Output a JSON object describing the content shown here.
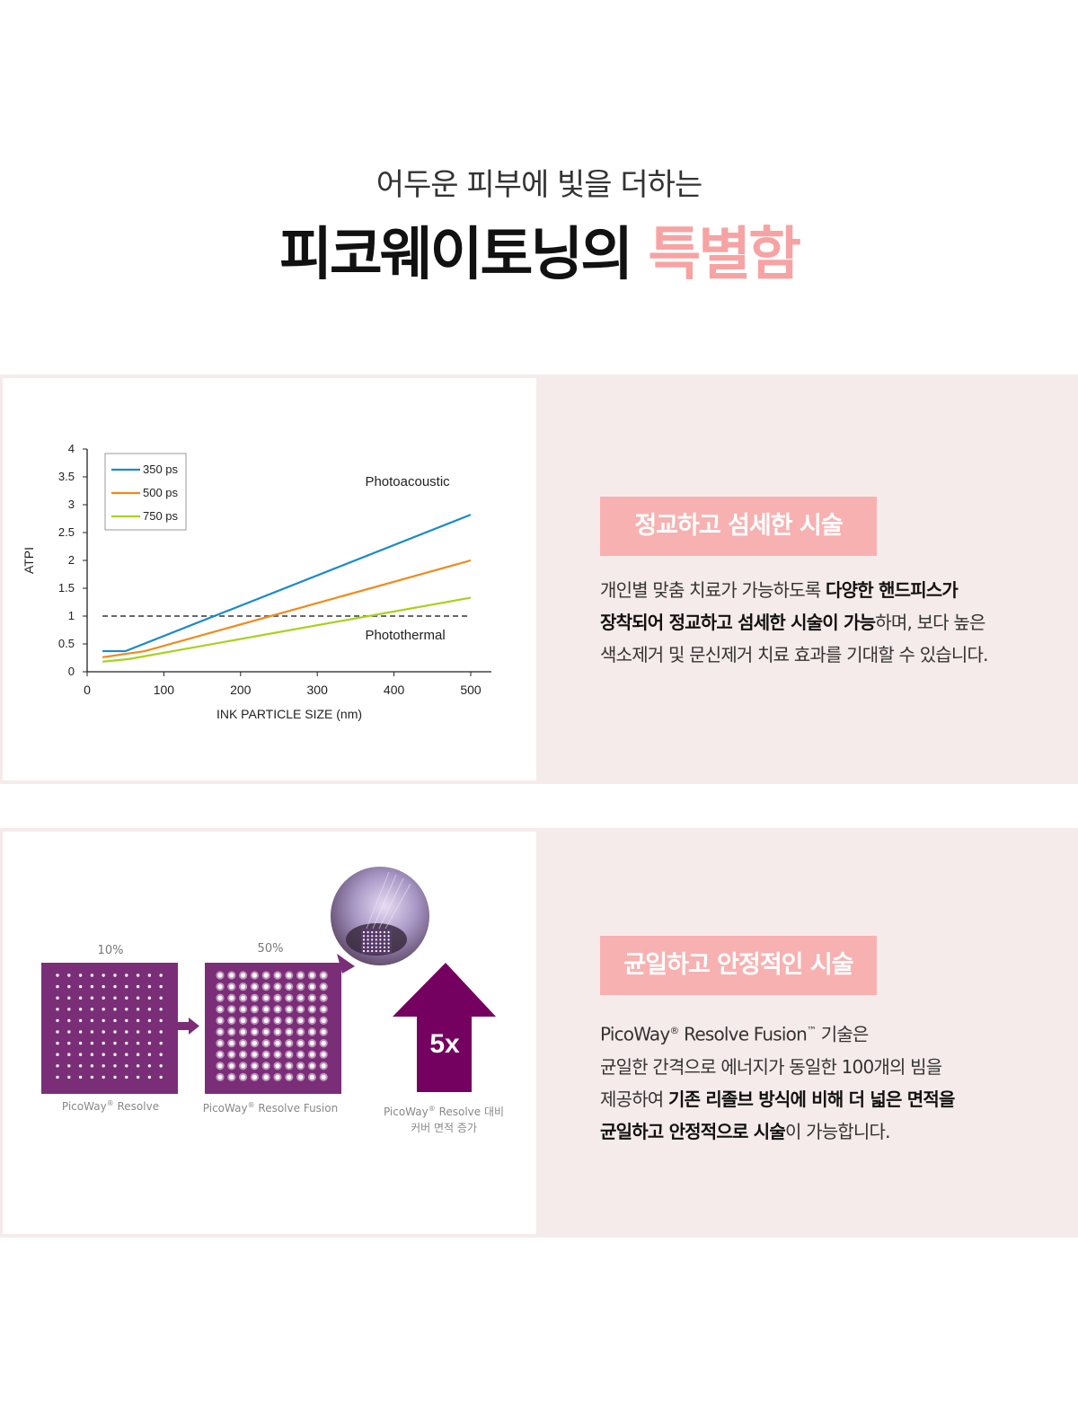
{
  "header": {
    "subtitle": "어두운 피부에 빛을 더하는",
    "title_main": "피코웨이토닝의",
    "title_accent": "특별함"
  },
  "section1": {
    "badge": "정교하고 섬세한 시술",
    "desc_line1_plain": "개인별 맞춤 치료가 가능하도록 ",
    "desc_line1_bold": "다양한 핸드피스가",
    "desc_line2_bold": "장착되어 정교하고 섬세한 시술이 가능",
    "desc_line2_plain": "하며, 보다 높은",
    "desc_line3_plain": "색소제거 및 문신제거 치료 효과를 기대할 수 있습니다."
  },
  "section2": {
    "badge": "균일하고 안정적인 시술",
    "desc_line1_a": "PicoWay",
    "desc_line1_reg": "®",
    "desc_line1_b": " Resolve Fusion",
    "desc_line1_tm": "™",
    "desc_line1_c": " 기술은",
    "desc_line2": "균일한 간격으로 에너지가 동일한 100개의 빔을",
    "desc_line3_plain": "제공하여 ",
    "desc_line3_bold": "기존 리졸브 방식에 비해 더 넓은 면적을",
    "desc_line4_bold": "균일하고 안정적으로 시술",
    "desc_line4_plain": "이 가능합니다.",
    "figure": {
      "pct_left": "10%",
      "pct_right": "50%",
      "cap_left_a": "PicoWay",
      "cap_left_reg": "®",
      "cap_left_b": " Resolve",
      "cap_mid_a": "PicoWay",
      "cap_mid_reg": "®",
      "cap_mid_b": " Resolve Fusion",
      "cap_right_a": "PicoWay",
      "cap_right_reg": "®",
      "cap_right_b": " Resolve 대비",
      "cap_right_line2": "커버 면적 증가",
      "arrow_label": "5x",
      "purple": "#7b2e78",
      "arrow_color": "#74005f"
    }
  },
  "chart_data": {
    "type": "line",
    "title": "",
    "xlabel": "INK PARTICLE SIZE (nm)",
    "ylabel": "ATPI",
    "xlim": [
      0,
      530
    ],
    "ylim": [
      0,
      4
    ],
    "xticks": [
      0,
      100,
      200,
      300,
      400,
      500
    ],
    "xtick_labels": [
      "0",
      "100",
      "200",
      "300",
      "400",
      "500"
    ],
    "yticks": [
      0,
      0.5,
      1,
      1.5,
      2,
      2.5,
      3,
      3.5,
      4
    ],
    "ytick_labels": [
      "0",
      "0.5",
      "1",
      "1.5",
      "2",
      "2.5",
      "3",
      "3.5",
      "4"
    ],
    "legend_position": "top-left",
    "grid": false,
    "series": [
      {
        "name": "350 ps",
        "color": "#1a8bc6",
        "x": [
          20,
          50,
          500
        ],
        "y": [
          0.37,
          0.37,
          2.82
        ]
      },
      {
        "name": "500 ps",
        "color": "#f08a1c",
        "x": [
          20,
          75,
          500
        ],
        "y": [
          0.26,
          0.37,
          2.0
        ]
      },
      {
        "name": "750 ps",
        "color": "#a8d11c",
        "x": [
          20,
          55,
          500
        ],
        "y": [
          0.18,
          0.23,
          1.33
        ]
      }
    ],
    "threshold": {
      "y": 1,
      "style": "dashed",
      "color": "#666666"
    },
    "annotations": [
      {
        "text": "Photoacoustic",
        "x": 360,
        "y": 3.42
      },
      {
        "text": "Photothermal",
        "x": 360,
        "y": 0.66
      }
    ]
  }
}
